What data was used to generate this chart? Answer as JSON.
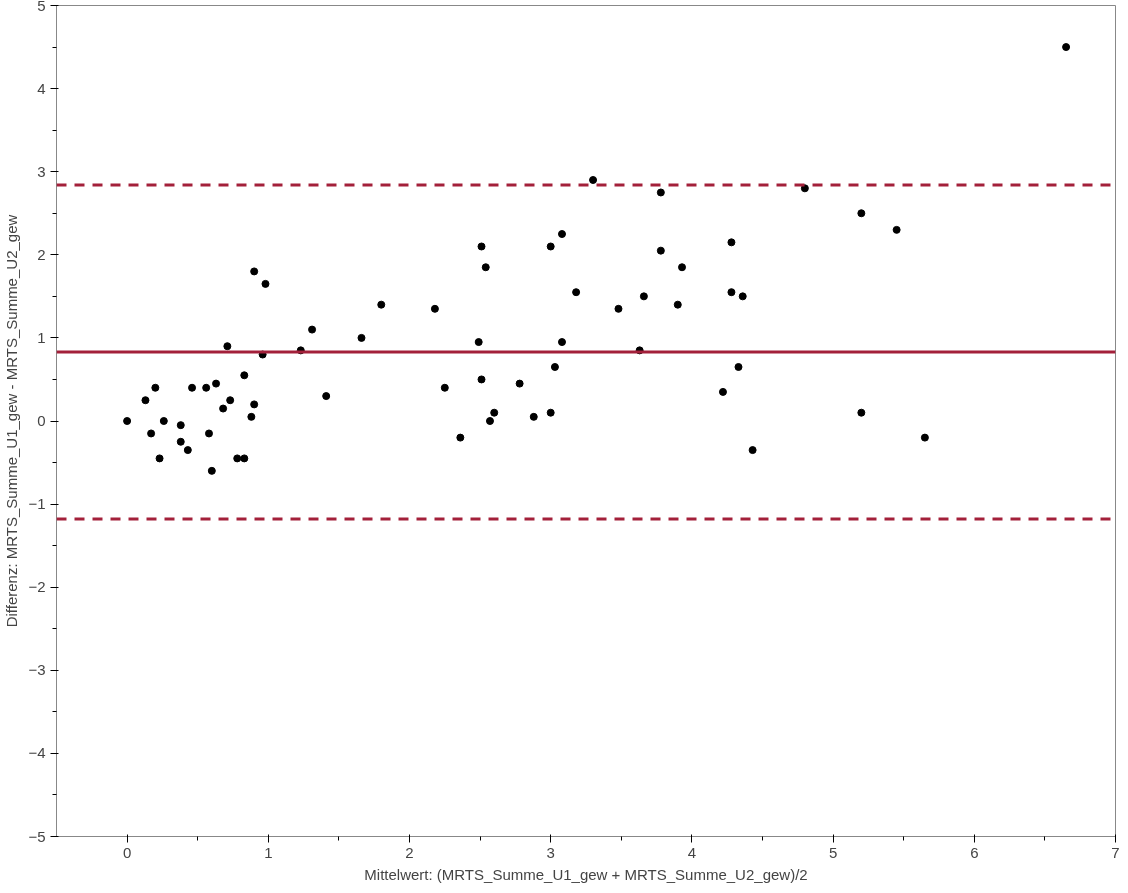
{
  "chart_data": {
    "type": "scatter",
    "xlabel": "Mittelwert: (MRTS_Summe_U1_gew + MRTS_Summe_U2_gew)/2",
    "ylabel": "Differenz: MRTS_Summe_U1_gew - MRTS_Summe_U2_gew",
    "x": [
      0,
      0.13,
      0.17,
      0.2,
      0.23,
      0.26,
      0.38,
      0.38,
      0.43,
      0.46,
      0.56,
      0.58,
      0.6,
      0.63,
      0.68,
      0.71,
      0.73,
      0.78,
      0.83,
      0.83,
      0.88,
      0.9,
      0.9,
      0.96,
      0.98,
      1.23,
      1.31,
      1.41,
      1.66,
      1.8,
      2.18,
      2.25,
      2.36,
      2.49,
      2.51,
      2.51,
      2.54,
      2.57,
      2.6,
      2.78,
      2.88,
      3.0,
      3.0,
      3.03,
      3.08,
      3.08,
      3.18,
      3.3,
      3.48,
      3.63,
      3.66,
      3.78,
      3.78,
      3.9,
      3.93,
      4.22,
      4.28,
      4.28,
      4.33,
      4.36,
      4.43,
      4.8,
      5.2,
      5.2,
      5.45,
      5.65,
      6.65
    ],
    "series": [
      {
        "color": "#000000",
        "values": [
          0,
          0.25,
          -0.15,
          0.4,
          -0.45,
          0,
          -0.05,
          -0.25,
          -0.35,
          0.4,
          0.4,
          -0.15,
          -0.6,
          0.45,
          0.15,
          0.9,
          0.25,
          -0.45,
          -0.45,
          0.55,
          0.05,
          0.2,
          1.8,
          0.8,
          1.65,
          0.85,
          1.1,
          0.3,
          1.0,
          1.4,
          1.35,
          0.4,
          -0.2,
          0.95,
          0.5,
          2.1,
          1.85,
          0,
          0.1,
          0.45,
          0.05,
          2.1,
          0.1,
          0.65,
          2.25,
          0.95,
          1.55,
          2.9,
          1.35,
          0.85,
          1.5,
          2.75,
          2.05,
          1.4,
          1.85,
          0.35,
          2.15,
          1.55,
          0.65,
          1.5,
          -0.35,
          2.8,
          2.5,
          0.1,
          2.3,
          -0.2,
          4.5
        ]
      }
    ],
    "marker": "circle",
    "xlim": [
      -0.5,
      7
    ],
    "ylim": [
      -5,
      5
    ],
    "xticks": [
      0,
      1,
      2,
      3,
      4,
      5,
      6,
      7
    ],
    "yticks": [
      -5,
      -4,
      -3,
      -2,
      -1,
      0,
      1,
      2,
      3,
      4,
      5
    ],
    "ref_lines": [
      {
        "axis": "y",
        "value": 0.83,
        "color": "#a3203a",
        "line_style": "solid"
      },
      {
        "axis": "y",
        "value": 2.84,
        "color": "#a3203a",
        "line_style": "dashed"
      },
      {
        "axis": "y",
        "value": -1.18,
        "color": "#a3203a",
        "line_style": "dashed"
      }
    ]
  }
}
